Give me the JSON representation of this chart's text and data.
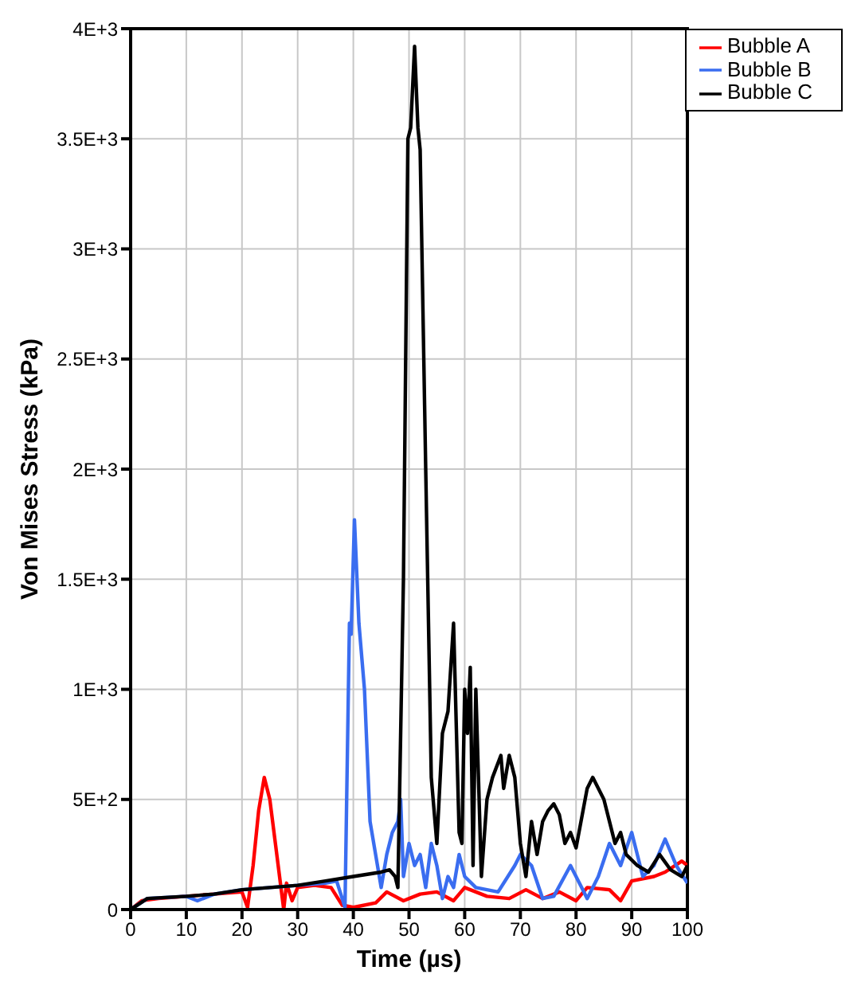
{
  "chart_data": {
    "type": "line",
    "xlabel": "Time  (µs)",
    "ylabel": "Von Mises Stress (kPa)",
    "xlim": [
      0,
      100
    ],
    "xticks": [
      0,
      10,
      20,
      30,
      40,
      50,
      60,
      70,
      80,
      90,
      100
    ],
    "ylim": [
      0,
      4000
    ],
    "yticks": [
      0,
      {
        "value": 500,
        "label": "5E+2"
      },
      {
        "value": 1000,
        "label": "1E+3"
      },
      {
        "value": 1500,
        "label": "1.5E+3"
      },
      {
        "value": 2000,
        "label": "2E+3"
      },
      {
        "value": 2500,
        "label": "2.5E+3"
      },
      {
        "value": 3000,
        "label": "3E+3"
      },
      {
        "value": 3500,
        "label": "3.5E+3"
      },
      {
        "value": 4000,
        "label": "4E+3"
      }
    ],
    "grid": true,
    "legend": "top right",
    "marker": "none",
    "line_style": "solid",
    "series": [
      {
        "name": "Bubble A",
        "color": "#ff0000",
        "x": [
          0,
          2,
          5,
          10,
          15,
          20,
          21,
          22,
          23,
          24,
          25,
          26,
          27,
          27.5,
          28,
          29,
          30,
          33,
          36,
          38,
          40,
          44,
          46,
          49,
          52,
          55,
          58,
          60,
          64,
          68,
          71,
          74,
          77,
          80,
          82,
          86,
          88,
          90,
          94,
          96,
          99,
          100
        ],
        "values": [
          0,
          40,
          50,
          60,
          70,
          80,
          10,
          200,
          450,
          600,
          500,
          300,
          100,
          0,
          120,
          40,
          100,
          110,
          100,
          20,
          10,
          30,
          80,
          40,
          70,
          80,
          40,
          100,
          60,
          50,
          90,
          50,
          80,
          40,
          100,
          90,
          40,
          130,
          150,
          170,
          220,
          200
        ]
      },
      {
        "name": "Bubble B",
        "color": "#3a6df0",
        "x": [
          0,
          3,
          10,
          12,
          15,
          20,
          25,
          30,
          35,
          37,
          38.5,
          39.3,
          39.6,
          40.2,
          41,
          42,
          43,
          44,
          45,
          46,
          47,
          48,
          48.5,
          49,
          50,
          51,
          52,
          53,
          54,
          55,
          56,
          57,
          58,
          59,
          60,
          62,
          66,
          69,
          70,
          72,
          74,
          76,
          79,
          81,
          82,
          84,
          86,
          88,
          90,
          92,
          94,
          96,
          98,
          100
        ],
        "values": [
          0,
          50,
          60,
          40,
          70,
          90,
          100,
          110,
          120,
          130,
          10,
          1300,
          1250,
          1770,
          1300,
          1000,
          400,
          250,
          100,
          250,
          350,
          400,
          500,
          150,
          300,
          200,
          250,
          100,
          300,
          200,
          50,
          150,
          100,
          250,
          150,
          100,
          80,
          200,
          250,
          200,
          50,
          60,
          200,
          100,
          50,
          150,
          300,
          200,
          350,
          150,
          200,
          320,
          200,
          120
        ]
      },
      {
        "name": "Bubble C",
        "color": "#000000",
        "x": [
          0,
          3,
          10,
          15,
          20,
          25,
          30,
          35,
          40,
          45,
          46.5,
          47.5,
          48,
          49,
          49.8,
          50.3,
          51,
          51.6,
          52,
          53,
          54,
          55,
          56,
          57,
          58,
          59,
          59.5,
          60,
          60.5,
          61,
          61.5,
          62,
          63,
          64,
          65,
          66.5,
          67,
          68,
          69,
          70,
          71,
          72,
          73,
          74,
          75,
          76,
          77,
          78,
          79,
          80,
          82,
          83,
          85,
          86,
          87,
          88,
          89,
          91,
          93,
          95,
          97,
          99,
          100
        ],
        "values": [
          0,
          50,
          60,
          70,
          90,
          100,
          110,
          130,
          150,
          170,
          180,
          150,
          100,
          1500,
          3500,
          3550,
          3920,
          3550,
          3450,
          2000,
          600,
          300,
          800,
          900,
          1300,
          350,
          300,
          1000,
          800,
          1100,
          200,
          1000,
          150,
          500,
          600,
          700,
          550,
          700,
          600,
          300,
          150,
          400,
          250,
          400,
          450,
          480,
          430,
          300,
          350,
          280,
          550,
          600,
          500,
          400,
          300,
          350,
          250,
          200,
          170,
          250,
          180,
          150,
          200
        ]
      }
    ]
  }
}
